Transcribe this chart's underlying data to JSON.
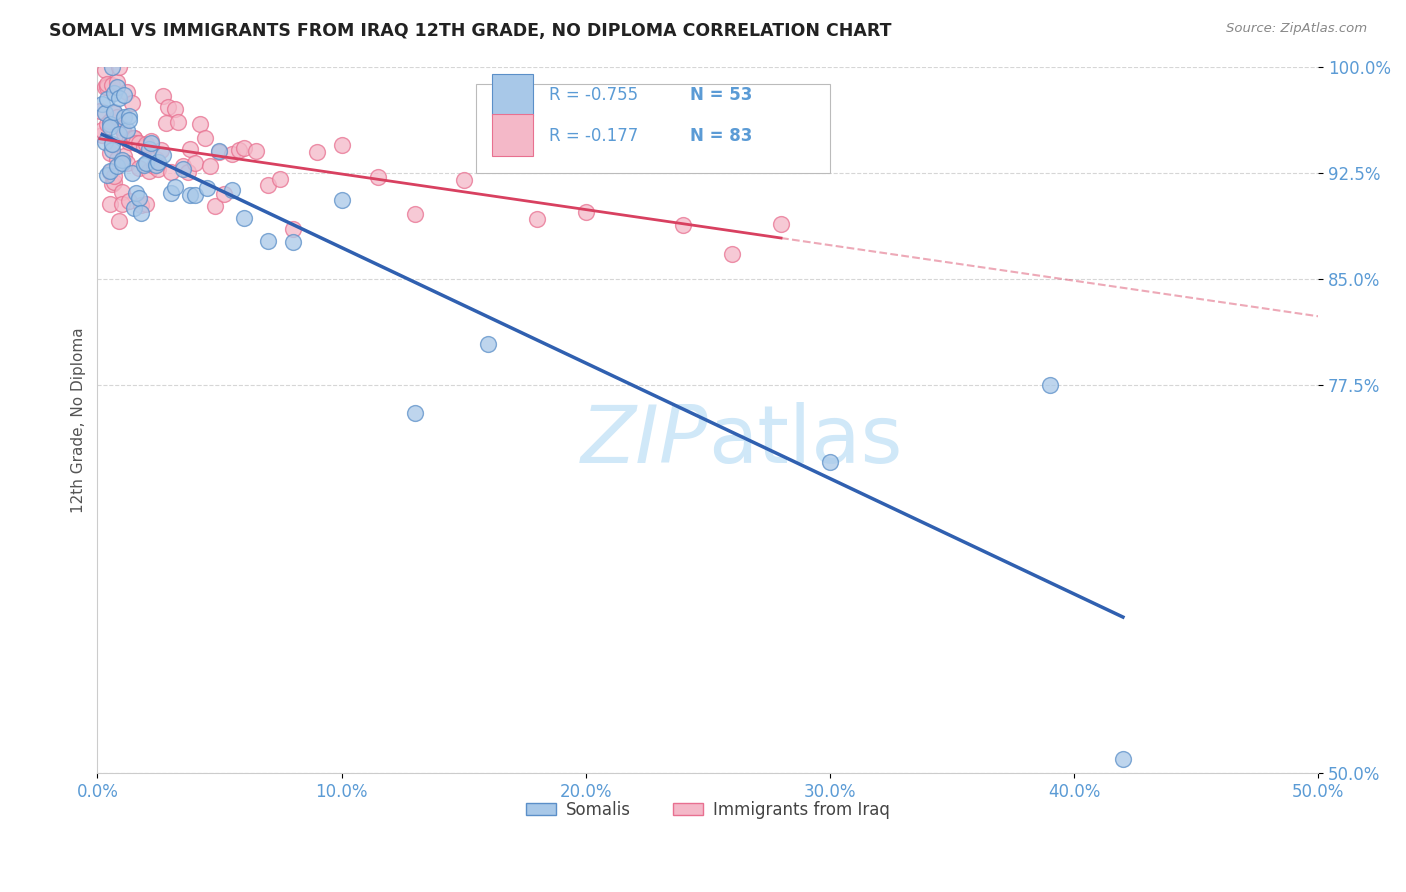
{
  "title": "SOMALI VS IMMIGRANTS FROM IRAQ 12TH GRADE, NO DIPLOMA CORRELATION CHART",
  "source": "Source: ZipAtlas.com",
  "ylabel": "12th Grade, No Diploma",
  "legend_blue_r": "-0.755",
  "legend_blue_n": "53",
  "legend_pink_r": "-0.177",
  "legend_pink_n": "83",
  "legend_label_blue": "Somalis",
  "legend_label_pink": "Immigrants from Iraq",
  "xlim": [
    0.0,
    0.5
  ],
  "ylim": [
    0.5,
    1.0
  ],
  "xticks": [
    0.0,
    0.1,
    0.2,
    0.3,
    0.4,
    0.5
  ],
  "yticks": [
    0.5,
    0.775,
    0.85,
    0.925,
    1.0
  ],
  "xticklabels": [
    "0.0%",
    "10.0%",
    "20.0%",
    "30.0%",
    "40.0%",
    "50.0%"
  ],
  "yticklabels": [
    "50.0%",
    "77.5%",
    "85.0%",
    "92.5%",
    "100.0%"
  ],
  "blue_scatter_color": "#a8c8e8",
  "blue_edge_color": "#5b8fc8",
  "pink_scatter_color": "#f4b8c8",
  "pink_edge_color": "#e87090",
  "blue_line_color": "#3060b0",
  "pink_line_color": "#d84060",
  "grid_color": "#cccccc",
  "watermark_color": "#d0e8f8",
  "title_color": "#222222",
  "source_color": "#888888",
  "tick_color": "#5b9bd5",
  "ylabel_color": "#555555"
}
